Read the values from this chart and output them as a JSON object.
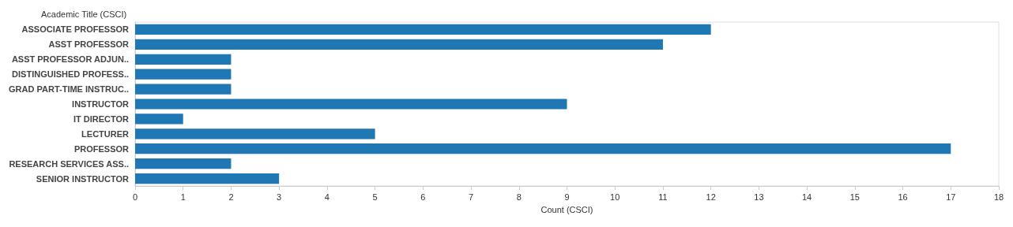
{
  "chart_data": {
    "type": "bar",
    "orientation": "horizontal",
    "xlabel": "Count (CSCI)",
    "ylabel": "Academic Title (CSCI)",
    "categories": [
      "ASSOCIATE PROFESSOR",
      "ASST PROFESSOR",
      "ASST PROFESSOR ADJUN..",
      "DISTINGUISHED PROFESS..",
      "GRAD PART-TIME INSTRUC..",
      "INSTRUCTOR",
      "IT DIRECTOR",
      "LECTURER",
      "PROFESSOR",
      "RESEARCH SERVICES ASS..",
      "SENIOR INSTRUCTOR"
    ],
    "values": [
      12,
      11,
      2,
      2,
      2,
      9,
      1,
      5,
      17,
      2,
      3
    ],
    "color": "#1f77b4",
    "xlim": [
      0,
      18
    ],
    "xticks": [
      0,
      1,
      2,
      3,
      4,
      5,
      6,
      7,
      8,
      9,
      10,
      11,
      12,
      13,
      14,
      15,
      16,
      17,
      18
    ]
  }
}
